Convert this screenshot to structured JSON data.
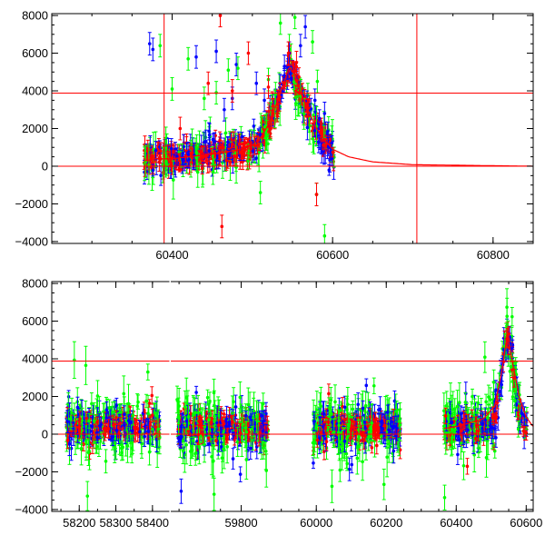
{
  "chart_data": [
    {
      "type": "scatter",
      "panel": "top",
      "xlim": [
        60250,
        60850
      ],
      "ylim": [
        -4100,
        8100
      ],
      "xticks": [
        60400,
        60600,
        60800
      ],
      "yticks": [
        -4000,
        -2000,
        0,
        2000,
        4000,
        6000,
        8000
      ],
      "grid": false,
      "data_range_x": [
        60365,
        60602
      ],
      "series": [
        {
          "color": "#0000ff",
          "values": [
            [
              60372,
              6500
            ],
            [
              60376,
              6200
            ],
            [
              60430,
              5800
            ],
            [
              60455,
              6100
            ],
            [
              60465,
              3000
            ],
            [
              60475,
              3600
            ],
            [
              60480,
              5400
            ],
            [
              60505,
              4400
            ],
            [
              60515,
              3500
            ],
            [
              60540,
              5300
            ],
            [
              60546,
              6000
            ],
            [
              60560,
              6400
            ],
            [
              60566,
              7400
            ],
            [
              60578,
              3500
            ],
            [
              60590,
              2800
            ]
          ],
          "peak": 4800
        },
        {
          "color": "#00ff00",
          "values": [
            [
              60385,
              6400
            ],
            [
              60400,
              4100
            ],
            [
              60420,
              5700
            ],
            [
              60440,
              3600
            ],
            [
              60455,
              3900
            ],
            [
              60470,
              5100
            ],
            [
              60482,
              5200
            ],
            [
              60520,
              4600
            ],
            [
              60535,
              7600
            ],
            [
              60553,
              7900
            ],
            [
              60575,
              6600
            ],
            [
              60581,
              4500
            ],
            [
              60510,
              -1400
            ],
            [
              60580,
              -1500
            ],
            [
              60590,
              -3700
            ]
          ],
          "peak": 5000
        },
        {
          "color": "#ff0000",
          "values": [
            [
              60410,
              2000
            ],
            [
              60445,
              4400
            ],
            [
              60460,
              8000
            ],
            [
              60462,
              -3200
            ],
            [
              60475,
              4000
            ],
            [
              60495,
              6000
            ],
            [
              60520,
              4200
            ],
            [
              60545,
              6000
            ],
            [
              60555,
              5500
            ],
            [
              60580,
              -1500
            ]
          ],
          "peak": 5500
        }
      ],
      "model_curve": {
        "color": "#ff0000",
        "x": [
          60368,
          60380,
          60400,
          60420,
          60440,
          60460,
          60480,
          60500,
          60510,
          60520,
          60530,
          60540,
          60546,
          60552,
          60560,
          60570,
          60580,
          60590,
          60600,
          60620,
          60650,
          60700,
          60850
        ],
        "y": [
          300,
          400,
          400,
          500,
          600,
          700,
          850,
          1100,
          1500,
          2200,
          3300,
          4500,
          5300,
          4900,
          3900,
          2900,
          2000,
          1400,
          900,
          500,
          230,
          80,
          0
        ]
      },
      "hlines": [
        {
          "y": 0,
          "color": "#ff0000"
        },
        {
          "y": 3880,
          "color": "#ff0000"
        }
      ],
      "vlines": [
        {
          "x": 60390,
          "color": "#ff0000"
        },
        {
          "x": 60705,
          "color": "#ff0000"
        }
      ]
    },
    {
      "type": "scatter",
      "panel": "bottom",
      "axis_break": true,
      "segments": [
        {
          "xlim": [
            58125,
            58445
          ],
          "xticks": [
            58200,
            58300,
            58400
          ],
          "data_range_x": [
            58165,
            58420
          ],
          "peak": null
        },
        {
          "xlim": [
            59630,
            59880
          ],
          "xticks": [
            59800
          ],
          "data_range_x": [
            59645,
            59865
          ],
          "peak": null
        },
        {
          "xlim": [
            59880,
            60620
          ],
          "xticks": [
            60000,
            60200,
            60400,
            60600
          ],
          "data_range_x": [
            [
              59990,
              60240
            ],
            [
              60365,
              60602
            ]
          ],
          "peak": {
            "x": 60546,
            "y": 4800
          }
        }
      ],
      "ylim": [
        -4100,
        8100
      ],
      "yticks": [
        -4000,
        -2000,
        0,
        2000,
        4000,
        6000,
        8000
      ],
      "grid": false,
      "colors": [
        "#0000ff",
        "#00ff00",
        "#ff0000"
      ],
      "model_curve": {
        "color": "#ff0000",
        "x": [
          60365,
          60400,
          60440,
          60480,
          60510,
          60530,
          60546,
          60560,
          60580,
          60600,
          60620
        ],
        "y": [
          300,
          400,
          600,
          850,
          1500,
          3300,
          5300,
          3900,
          2000,
          900,
          400
        ]
      },
      "hlines": [
        {
          "y": 0,
          "color": "#ff0000"
        },
        {
          "y": 3880,
          "color": "#ff0000"
        }
      ]
    }
  ]
}
